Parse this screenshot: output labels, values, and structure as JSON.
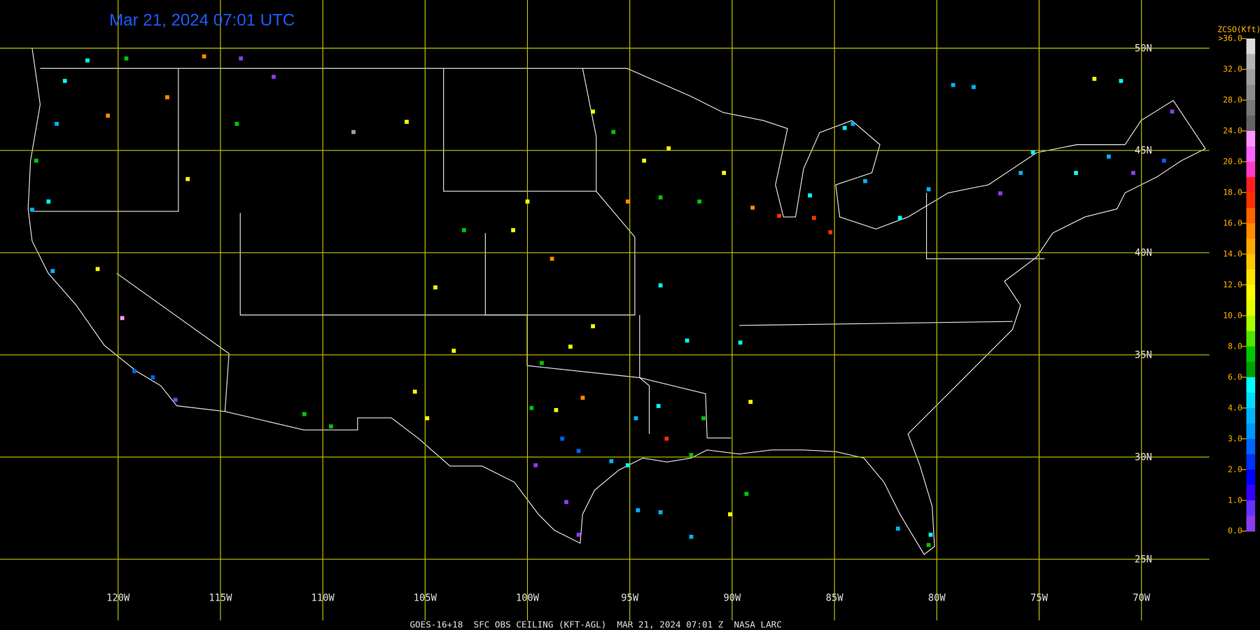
{
  "title": "Mar 21, 2024 07:01 UTC",
  "footer": "GOES-16+18  SFC OBS CEILING (KFT-AGL)  MAR 21, 2024 07:01 Z  NASA LARC",
  "grid": {
    "lat": [
      {
        "value": 50,
        "label": "50N"
      },
      {
        "value": 45,
        "label": "45N"
      },
      {
        "value": 40,
        "label": "40N"
      },
      {
        "value": 35,
        "label": "35N"
      },
      {
        "value": 30,
        "label": "30N"
      },
      {
        "value": 25,
        "label": "25N"
      }
    ],
    "lon": [
      {
        "value": -120,
        "label": "120W"
      },
      {
        "value": -115,
        "label": "115W"
      },
      {
        "value": -110,
        "label": "110W"
      },
      {
        "value": -105,
        "label": "105W"
      },
      {
        "value": -100,
        "label": "100W"
      },
      {
        "value": -95,
        "label": "95W"
      },
      {
        "value": -90,
        "label": "90W"
      },
      {
        "value": -85,
        "label": "85W"
      },
      {
        "value": -80,
        "label": "80W"
      },
      {
        "value": -75,
        "label": "75W"
      },
      {
        "value": -70,
        "label": "70W"
      }
    ]
  },
  "legend": {
    "title": "ZCSO(Kft)",
    "ticks": [
      {
        "value": 36,
        "label": ">36.0"
      },
      {
        "value": 32,
        "label": "32.0"
      },
      {
        "value": 28,
        "label": "28.0"
      },
      {
        "value": 24,
        "label": "24.0"
      },
      {
        "value": 20,
        "label": "20.0"
      },
      {
        "value": 18,
        "label": "18.0"
      },
      {
        "value": 16,
        "label": "16.0"
      },
      {
        "value": 14,
        "label": "14.0"
      },
      {
        "value": 12,
        "label": "12.0"
      },
      {
        "value": 10,
        "label": "10.0"
      },
      {
        "value": 8,
        "label": "8.0"
      },
      {
        "value": 6,
        "label": "6.0"
      },
      {
        "value": 4,
        "label": "4.0"
      },
      {
        "value": 3,
        "label": "3.0"
      },
      {
        "value": 2,
        "label": "2.0"
      },
      {
        "value": 1,
        "label": "1.0"
      },
      {
        "value": 0,
        "label": "0.0"
      }
    ],
    "colors": [
      "#dcdcdc",
      "#b4b4b4",
      "#a0a0a0",
      "#8c8c8c",
      "#787878",
      "#646464",
      "#ff96ff",
      "#ff64ff",
      "#ff3cc8",
      "#ff2020",
      "#ff3200",
      "#ff6400",
      "#ff8c00",
      "#ffaa00",
      "#ffc800",
      "#ffe600",
      "#ffff00",
      "#e6ff00",
      "#aaff00",
      "#50e600",
      "#00c800",
      "#00a000",
      "#00ffff",
      "#00dcff",
      "#00b4ff",
      "#0096ff",
      "#0064ff",
      "#0032ff",
      "#0000ff",
      "#3200ff",
      "#6432ff",
      "#8c3cf0"
    ]
  },
  "stations": [
    {
      "lon": -119.6,
      "lat": 49.5,
      "value": 7
    },
    {
      "lon": -115.8,
      "lat": 49.6,
      "value": 15
    },
    {
      "lon": -114.0,
      "lat": 49.5,
      "value": 0.3
    },
    {
      "lon": -112.4,
      "lat": 48.6,
      "value": 0.3
    },
    {
      "lon": -117.6,
      "lat": 47.6,
      "value": 15
    },
    {
      "lon": -120.5,
      "lat": 46.7,
      "value": 15
    },
    {
      "lon": -124.0,
      "lat": 44.5,
      "value": 7
    },
    {
      "lon": -123.4,
      "lat": 42.5,
      "value": 5
    },
    {
      "lon": -123.2,
      "lat": 39.1,
      "value": 3.5
    },
    {
      "lon": -121.0,
      "lat": 39.2,
      "value": 11
    },
    {
      "lon": -119.8,
      "lat": 36.8,
      "value": 22
    },
    {
      "lon": -119.2,
      "lat": 34.2,
      "value": 2.5
    },
    {
      "lon": -118.3,
      "lat": 33.9,
      "value": 2.5
    },
    {
      "lon": -117.2,
      "lat": 32.8,
      "value": 0.3
    },
    {
      "lon": -116.6,
      "lat": 43.6,
      "value": 11
    },
    {
      "lon": -114.2,
      "lat": 46.3,
      "value": 7
    },
    {
      "lon": -108.5,
      "lat": 45.9,
      "value": 30
    },
    {
      "lon": -105.9,
      "lat": 46.4,
      "value": 11
    },
    {
      "lon": -104.5,
      "lat": 38.3,
      "value": 11
    },
    {
      "lon": -103.6,
      "lat": 35.2,
      "value": 11
    },
    {
      "lon": -105.5,
      "lat": 33.2,
      "value": 11
    },
    {
      "lon": -104.9,
      "lat": 31.9,
      "value": 11
    },
    {
      "lon": -110.9,
      "lat": 32.1,
      "value": 7
    },
    {
      "lon": -109.6,
      "lat": 31.5,
      "value": 7
    },
    {
      "lon": -103.1,
      "lat": 41.1,
      "value": 7
    },
    {
      "lon": -100.7,
      "lat": 41.1,
      "value": 11
    },
    {
      "lon": -100.0,
      "lat": 42.5,
      "value": 11
    },
    {
      "lon": -98.8,
      "lat": 39.7,
      "value": 15
    },
    {
      "lon": -96.8,
      "lat": 36.4,
      "value": 11
    },
    {
      "lon": -97.9,
      "lat": 35.4,
      "value": 11
    },
    {
      "lon": -99.3,
      "lat": 34.6,
      "value": 7
    },
    {
      "lon": -97.3,
      "lat": 32.9,
      "value": 15
    },
    {
      "lon": -98.6,
      "lat": 32.3,
      "value": 11
    },
    {
      "lon": -99.8,
      "lat": 32.4,
      "value": 7
    },
    {
      "lon": -98.3,
      "lat": 30.9,
      "value": 2.5
    },
    {
      "lon": -97.5,
      "lat": 30.3,
      "value": 2.5
    },
    {
      "lon": -99.6,
      "lat": 29.6,
      "value": 0.3
    },
    {
      "lon": -98.1,
      "lat": 27.8,
      "value": 0.3
    },
    {
      "lon": -97.5,
      "lat": 26.2,
      "value": 0.3
    },
    {
      "lon": -95.9,
      "lat": 29.8,
      "value": 3.5
    },
    {
      "lon": -95.1,
      "lat": 29.6,
      "value": 5
    },
    {
      "lon": -94.7,
      "lat": 31.9,
      "value": 3.5
    },
    {
      "lon": -93.2,
      "lat": 30.9,
      "value": 17
    },
    {
      "lon": -92.0,
      "lat": 30.1,
      "value": 7
    },
    {
      "lon": -93.6,
      "lat": 32.5,
      "value": 5
    },
    {
      "lon": -91.4,
      "lat": 31.9,
      "value": 7
    },
    {
      "lon": -89.1,
      "lat": 32.7,
      "value": 11
    },
    {
      "lon": -89.3,
      "lat": 28.2,
      "value": 7
    },
    {
      "lon": -90.1,
      "lat": 27.2,
      "value": 11
    },
    {
      "lon": -92.0,
      "lat": 26.1,
      "value": 3.5
    },
    {
      "lon": -93.5,
      "lat": 38.4,
      "value": 5
    },
    {
      "lon": -92.2,
      "lat": 35.7,
      "value": 5
    },
    {
      "lon": -89.6,
      "lat": 35.6,
      "value": 5
    },
    {
      "lon": -96.8,
      "lat": 46.9,
      "value": 11
    },
    {
      "lon": -95.8,
      "lat": 45.9,
      "value": 7
    },
    {
      "lon": -94.3,
      "lat": 44.5,
      "value": 11
    },
    {
      "lon": -93.1,
      "lat": 45.1,
      "value": 11
    },
    {
      "lon": -93.5,
      "lat": 42.7,
      "value": 7
    },
    {
      "lon": -95.1,
      "lat": 42.5,
      "value": 15
    },
    {
      "lon": -91.6,
      "lat": 42.5,
      "value": 7
    },
    {
      "lon": -90.4,
      "lat": 43.9,
      "value": 11
    },
    {
      "lon": -89.0,
      "lat": 42.2,
      "value": 15
    },
    {
      "lon": -87.7,
      "lat": 41.8,
      "value": 17
    },
    {
      "lon": -86.0,
      "lat": 41.7,
      "value": 17
    },
    {
      "lon": -85.2,
      "lat": 41.0,
      "value": 17
    },
    {
      "lon": -86.2,
      "lat": 42.8,
      "value": 5
    },
    {
      "lon": -84.5,
      "lat": 46.1,
      "value": 5
    },
    {
      "lon": -83.5,
      "lat": 43.5,
      "value": 3.5
    },
    {
      "lon": -84.1,
      "lat": 46.3,
      "value": 3.5
    },
    {
      "lon": -81.8,
      "lat": 41.7,
      "value": 5
    },
    {
      "lon": -80.4,
      "lat": 43.1,
      "value": 3.5
    },
    {
      "lon": -79.2,
      "lat": 48.2,
      "value": 3.5
    },
    {
      "lon": -78.2,
      "lat": 48.1,
      "value": 3.5
    },
    {
      "lon": -76.9,
      "lat": 42.9,
      "value": 0.3
    },
    {
      "lon": -75.9,
      "lat": 43.9,
      "value": 3.5
    },
    {
      "lon": -75.3,
      "lat": 44.9,
      "value": 5
    },
    {
      "lon": -73.2,
      "lat": 43.9,
      "value": 5
    },
    {
      "lon": -71.6,
      "lat": 44.7,
      "value": 3.5
    },
    {
      "lon": -70.4,
      "lat": 43.9,
      "value": 0.3
    },
    {
      "lon": -68.9,
      "lat": 44.5,
      "value": 2.5
    },
    {
      "lon": -68.5,
      "lat": 46.9,
      "value": 0.3
    },
    {
      "lon": -72.3,
      "lat": 48.5,
      "value": 11
    },
    {
      "lon": -71.0,
      "lat": 48.4,
      "value": 5
    },
    {
      "lon": -81.9,
      "lat": 26.5,
      "value": 3.5
    },
    {
      "lon": -80.4,
      "lat": 25.7,
      "value": 7
    },
    {
      "lon": -80.3,
      "lat": 26.2,
      "value": 5
    },
    {
      "lon": -93.5,
      "lat": 27.3,
      "value": 3.5
    },
    {
      "lon": -94.6,
      "lat": 27.4,
      "value": 3.5
    },
    {
      "lon": -121.5,
      "lat": 49.4,
      "value": 5
    },
    {
      "lon": -122.6,
      "lat": 48.4,
      "value": 5
    },
    {
      "lon": -123.0,
      "lat": 46.3,
      "value": 3.5
    },
    {
      "lon": -124.2,
      "lat": 42.1,
      "value": 3.5
    }
  ]
}
